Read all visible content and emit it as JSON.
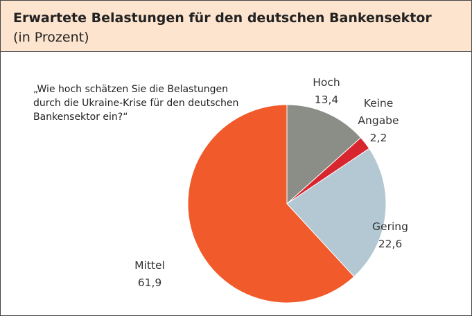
{
  "chart_data": {
    "type": "pie",
    "title": "Erwartete Belastungen für den deutschen Bankensektor",
    "subtitle": "(in Prozent)",
    "annotation": "„Wie hoch schätzen Sie die Belastungen durch die Ukraine-Krise für den deutschen Bankensektor ein?“",
    "categories": [
      "Hoch",
      "Keine Angabe",
      "Gering",
      "Mittel"
    ],
    "values": [
      13.4,
      2.2,
      22.6,
      61.9
    ],
    "value_labels": [
      "13,4",
      "2,2",
      "22,6",
      "61,9"
    ],
    "colors": [
      "#8a8e86",
      "#d8262e",
      "#b4c8d4",
      "#f15a2b"
    ]
  }
}
